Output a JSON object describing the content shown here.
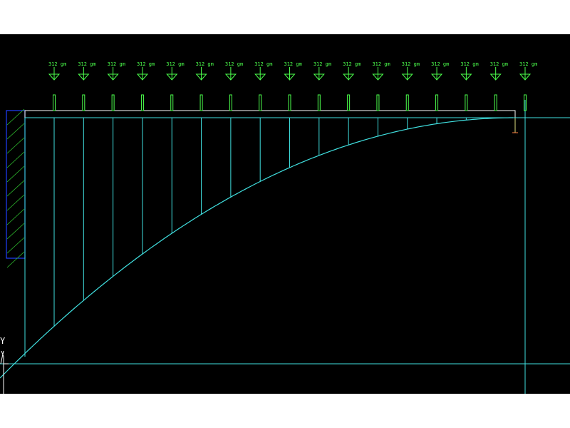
{
  "load_label": "312 gm",
  "load_count": 17,
  "axis_label": "Y",
  "colors": {
    "background": "#000000",
    "load": "#4cff4c",
    "deflection": "#40e0e0",
    "beam": "#ffffff",
    "support": "#2040ff",
    "hatch": "#30c030"
  }
}
